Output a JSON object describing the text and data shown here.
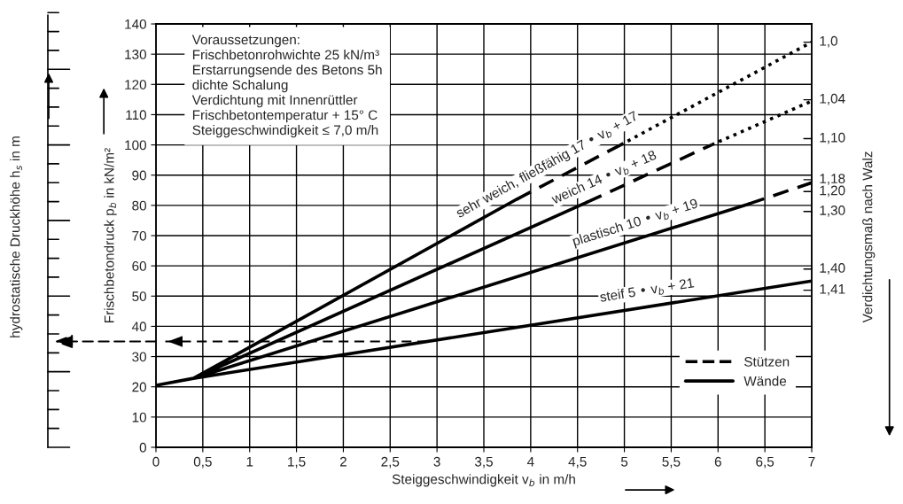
{
  "chart_data": {
    "type": "line",
    "xlabel": "Steiggeschwindigkeit v$_{b}$ in m/h",
    "ylabel": "Frischbetondruck p$_{b}$ in kN/m²",
    "y2label": "Verdichtungsmaß nach Walz",
    "y3label": "hydrostatische Druckhöhe h$_{s}$ in m",
    "xlim": [
      0,
      7
    ],
    "xticks": [
      0,
      {
        "value": 0.5,
        "label": "0,5"
      },
      1,
      {
        "value": 1.5,
        "label": "1,5"
      },
      2,
      {
        "value": 2.5,
        "label": "2,5"
      },
      3,
      {
        "value": 3.5,
        "label": "3,5"
      },
      4,
      {
        "value": 4.5,
        "label": "4,5"
      },
      5,
      {
        "value": 5.5,
        "label": "5,5"
      },
      6,
      {
        "value": 6.5,
        "label": "6,5"
      },
      7
    ],
    "ylim": [
      0,
      140
    ],
    "yticks": [
      0,
      10,
      20,
      30,
      40,
      50,
      60,
      70,
      80,
      90,
      100,
      110,
      120,
      130,
      140
    ],
    "grid": true,
    "legend": "bottom right",
    "series": [
      {
        "name": "Stützen",
        "color": "#000000",
        "line_style": "dashed",
        "x": [
          3.85,
          4.96,
          null,
          4.6,
          5.93,
          null,
          6.33,
          7
        ],
        "values": [
          82,
          100,
          null,
          81,
          100,
          null,
          80.5,
          87.5
        ]
      },
      {
        "name": "Wände",
        "color": "#000000",
        "line_style": "solid",
        "x": [
          0,
          0.4,
          null,
          0.4,
          3.85,
          null,
          0.4,
          4.6,
          null,
          0.4,
          6.33,
          null,
          0.4,
          7
        ],
        "values": [
          20.5,
          22.8,
          null,
          22.8,
          82,
          null,
          22.8,
          81,
          null,
          22.8,
          80.5,
          null,
          22.8,
          55
        ]
      },
      {
        "color": "#000000",
        "line_style": "dotted",
        "x": [
          4.96,
          7,
          null,
          5.93,
          7
        ],
        "values": [
          100,
          134,
          null,
          100,
          114.5
        ]
      },
      {
        "color": "#000000",
        "line_style": "dashed",
        "x": [
          0.1,
          2.9
        ],
        "values": [
          35,
          35
        ]
      }
    ],
    "annotations": [
      "Voraussetzungen:\nFrischbetonrohwichte 25 kN/m³\nErstarrungsende des Betons 5h\ndichte Schalung\nVerdichtung mit Innenrüttler\nFrischbetontemperatur + 15° C\nSteiggeschwindigkeit ≤ 7,0 m/h",
      "sehr weich, fließfähig 17 • v$_{b}$ + 17",
      "weich 14 • v$_{b}$ + 18",
      "plastisch 10 • v$_{b}$ + 19",
      "steif 5 • v$_{b}$ + 21",
      "1,0",
      "1,04",
      "1,10",
      "1,18",
      "1,20",
      "1,30",
      "1,40",
      "1,41"
    ]
  }
}
